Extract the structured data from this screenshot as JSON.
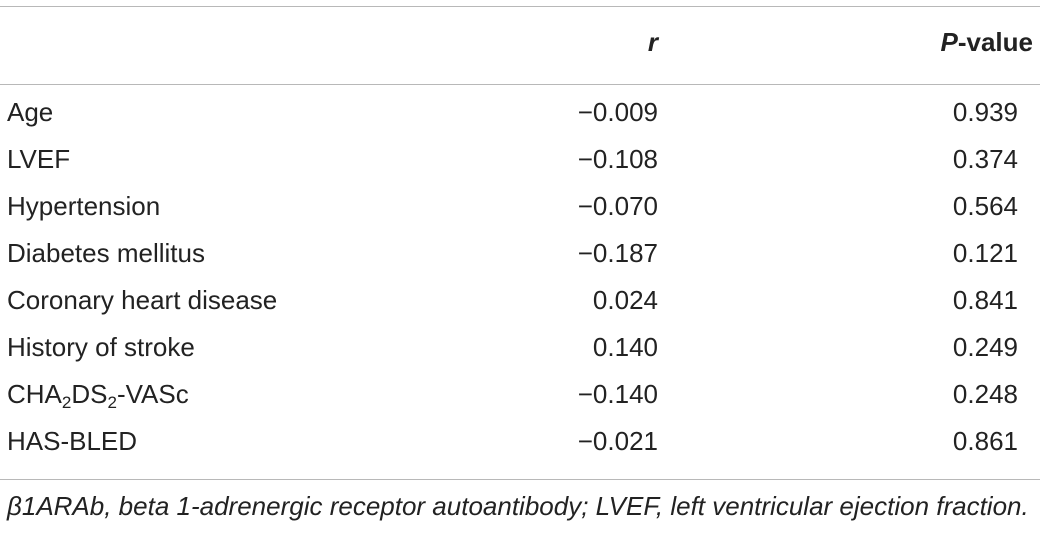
{
  "table": {
    "headers": {
      "r": "r",
      "p_italic": "P",
      "p_rest": "-value"
    },
    "rows": [
      {
        "label": "Age",
        "r": "−0.009",
        "p": "0.939"
      },
      {
        "label": "LVEF",
        "r": "−0.108",
        "p": "0.374"
      },
      {
        "label": "Hypertension",
        "r": "−0.070",
        "p": "0.564"
      },
      {
        "label": "Diabetes mellitus",
        "r": "−0.187",
        "p": "0.121"
      },
      {
        "label": "Coronary heart disease",
        "r": "0.024",
        "p": "0.841"
      },
      {
        "label": "History of stroke",
        "r": "0.140",
        "p": "0.249"
      },
      {
        "label_parts": [
          "CHA",
          "2",
          "DS",
          "2",
          "-VASc"
        ],
        "r": "−0.140",
        "p": "0.248"
      },
      {
        "label": "HAS-BLED",
        "r": "−0.021",
        "p": "0.861"
      }
    ]
  },
  "footnote": "β1ARAb, beta 1-adrenergic receptor autoantibody; LVEF, left ventricular ejection fraction."
}
